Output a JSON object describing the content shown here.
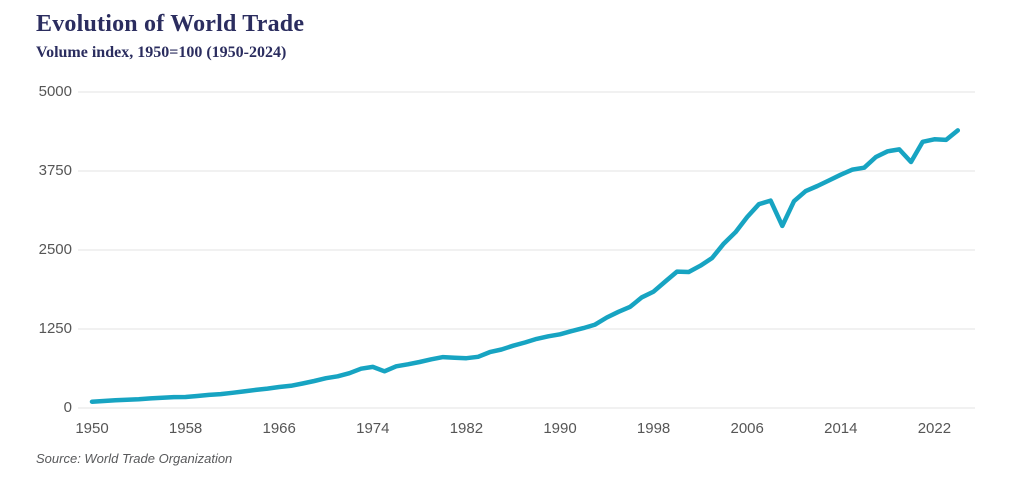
{
  "chart_data": {
    "type": "line",
    "title": "Evolution of World Trade",
    "subtitle": "Volume index, 1950=100 (1950-2024)",
    "source": "Source: World Trade Organization",
    "xlabel": "",
    "ylabel": "",
    "ylim": [
      0,
      5000
    ],
    "yticks": [
      0,
      1250,
      2500,
      3750,
      5000
    ],
    "xticks": [
      1950,
      1958,
      1966,
      1974,
      1982,
      1990,
      1998,
      2006,
      2014,
      2022
    ],
    "grid": true,
    "legend": "none",
    "line_color": "#17a4c2",
    "grid_color": "#e3e3e3",
    "title_color": "#2b2d5f",
    "tick_color": "#565656",
    "x": [
      1950,
      1951,
      1952,
      1953,
      1954,
      1955,
      1956,
      1957,
      1958,
      1959,
      1960,
      1961,
      1962,
      1963,
      1964,
      1965,
      1966,
      1967,
      1968,
      1969,
      1970,
      1971,
      1972,
      1973,
      1974,
      1975,
      1976,
      1977,
      1978,
      1979,
      1980,
      1981,
      1982,
      1983,
      1984,
      1985,
      1986,
      1987,
      1988,
      1989,
      1990,
      1991,
      1992,
      1993,
      1994,
      1995,
      1996,
      1997,
      1998,
      1999,
      2000,
      2001,
      2002,
      2003,
      2004,
      2005,
      2006,
      2007,
      2008,
      2009,
      2010,
      2011,
      2012,
      2013,
      2014,
      2015,
      2016,
      2017,
      2018,
      2019,
      2020,
      2021,
      2022,
      2023,
      2024
    ],
    "series": [
      {
        "name": "World trade volume index (1950=100)",
        "values": [
          100,
          110,
          122,
          130,
          138,
          152,
          163,
          172,
          174,
          190,
          208,
          220,
          240,
          262,
          287,
          307,
          332,
          352,
          387,
          428,
          472,
          502,
          550,
          622,
          650,
          580,
          660,
          692,
          728,
          770,
          806,
          796,
          788,
          810,
          884,
          926,
          986,
          1036,
          1094,
          1134,
          1166,
          1216,
          1264,
          1320,
          1432,
          1522,
          1602,
          1752,
          1842,
          2002,
          2158,
          2152,
          2252,
          2374,
          2602,
          2782,
          3022,
          3224,
          3282,
          2882,
          3272,
          3432,
          3512,
          3602,
          3692,
          3772,
          3802,
          3972,
          4062,
          4092,
          3892,
          4212,
          4252,
          4242,
          4392
        ]
      }
    ]
  }
}
